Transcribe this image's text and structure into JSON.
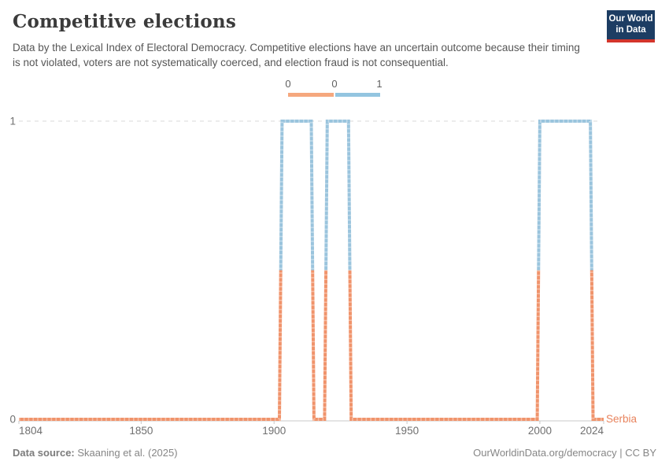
{
  "header": {
    "title": "Competitive elections",
    "subtitle": "Data by the Lexical Index of Electoral Democracy. Competitive elections have an uncertain outcome because their timing is not violated, voters are not systematically coerced, and election fraud is not consequential.",
    "logo": {
      "line1": "Our World",
      "line2": "in Data"
    }
  },
  "legend": {
    "labels": [
      "0",
      "0",
      "1"
    ],
    "swatch_color_zero": "#f5a87e",
    "swatch_color_one": "#93c5e0"
  },
  "chart_data": {
    "type": "line",
    "subtype": "binary-step",
    "entity": "Serbia",
    "xlabel": "",
    "ylabel": "",
    "xlim": [
      1804,
      2024
    ],
    "ylim": [
      0,
      1
    ],
    "x_ticks": [
      1804,
      1850,
      1900,
      1950,
      2000,
      2024
    ],
    "y_ticks": [
      0,
      1
    ],
    "grid": "dashed line at y=1, solid axis at y=0",
    "legend_position": "top-center",
    "series": [
      {
        "name": "Serbia",
        "steps": [
          {
            "from": 1804,
            "to": 1902,
            "value": 0
          },
          {
            "from": 1903,
            "to": 1914,
            "value": 1
          },
          {
            "from": 1915,
            "to": 1919,
            "value": 0
          },
          {
            "from": 1920,
            "to": 1928,
            "value": 1
          },
          {
            "from": 1929,
            "to": 1999,
            "value": 0
          },
          {
            "from": 2000,
            "to": 2019,
            "value": 1
          },
          {
            "from": 2020,
            "to": 2024,
            "value": 0
          }
        ]
      }
    ],
    "color_value0": "#f0936b",
    "color_value1": "#9ac4dd",
    "entity_label_color": "#e8835d",
    "tick_label_color": "#6f6f6f",
    "gridline_color": "#d9d9d9",
    "axis_color": "#c8c8c8"
  },
  "footer": {
    "source_label": "Data source:",
    "source": "Skaaning et al. (2025)",
    "right": "OurWorldinData.org/democracy | CC BY"
  }
}
